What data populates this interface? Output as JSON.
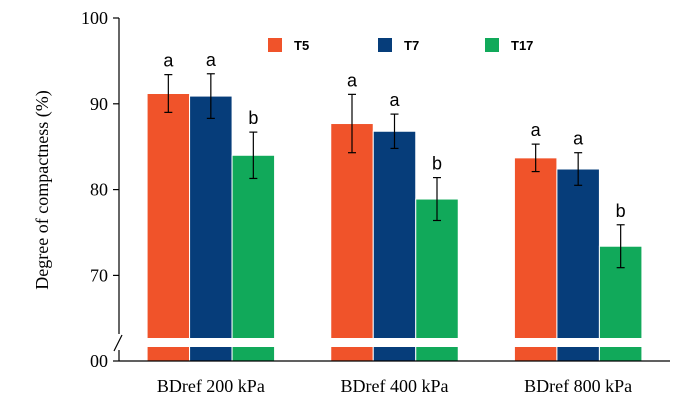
{
  "chart_data": {
    "type": "bar",
    "title": "",
    "xlabel": "",
    "ylabel": "Degree of compactness (%)",
    "categories": [
      "BDref 200 kPa",
      "BDref 400 kPa",
      "BDref 800 kPa"
    ],
    "series": [
      {
        "name": "T5",
        "color": "#F0532A",
        "values": [
          91.2,
          87.7,
          83.7
        ],
        "errors": [
          2.2,
          3.4,
          1.6
        ],
        "letters": [
          "a",
          "a",
          "a"
        ]
      },
      {
        "name": "T7",
        "color": "#063D7A",
        "values": [
          90.9,
          86.8,
          82.4
        ],
        "errors": [
          2.6,
          2.0,
          1.9
        ],
        "letters": [
          "a",
          "a",
          "a"
        ]
      },
      {
        "name": "T17",
        "color": "#11A95A",
        "values": [
          84.0,
          78.9,
          73.4
        ],
        "errors": [
          2.7,
          2.5,
          2.5
        ],
        "letters": [
          "b",
          "b",
          "b"
        ]
      }
    ],
    "y_ticks": [
      {
        "value": 100,
        "label": "100"
      },
      {
        "value": 90,
        "label": "90"
      },
      {
        "value": 80,
        "label": "80"
      },
      {
        "value": 70,
        "label": "70"
      },
      {
        "value": 0,
        "label": "00"
      }
    ],
    "ylim": [
      60,
      100
    ],
    "axis_break": true,
    "grid": false,
    "legend_position": "top"
  }
}
